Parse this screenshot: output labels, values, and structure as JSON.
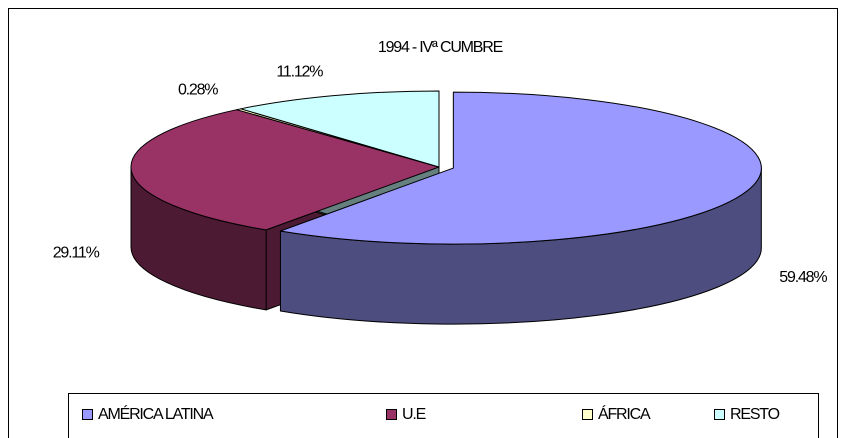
{
  "chart_data": {
    "type": "pie3d",
    "title": "1994 - IVª CUMBRE",
    "categories": [
      "AMÉRICA LATINA",
      "U.E",
      "ÁFRICA",
      "RESTO"
    ],
    "values": [
      59.48,
      29.11,
      0.28,
      11.12
    ],
    "value_labels": [
      "59.48%",
      "29.11%",
      "0.28%",
      "11.12%"
    ],
    "colors": [
      "#9999ff",
      "#993366",
      "#ffffcc",
      "#ccffff"
    ],
    "legend": "bottom"
  }
}
